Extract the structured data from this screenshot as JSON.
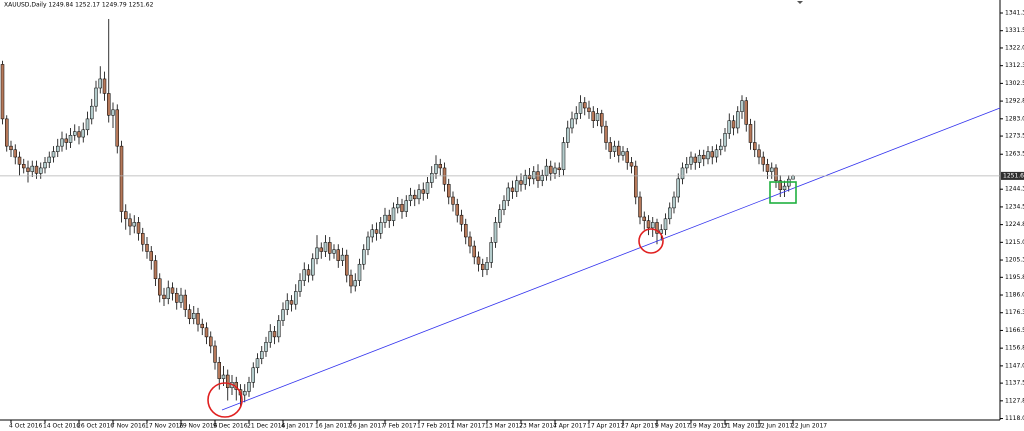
{
  "chart_data": {
    "type": "candlestick",
    "title": "XAUUSD,Daily  1249.84 1252.17 1249.79 1251.62",
    "categories": [
      null,
      null,
      "4 Oct 2016",
      null,
      null,
      null,
      null,
      null,
      null,
      null,
      "14 Oct 2016",
      null,
      null,
      null,
      null,
      null,
      null,
      null,
      "26 Oct 2016",
      null,
      null,
      null,
      null,
      null,
      null,
      null,
      "7 Nov 2016",
      null,
      null,
      null,
      null,
      null,
      null,
      null,
      "17 Nov 2016",
      null,
      null,
      null,
      null,
      null,
      null,
      null,
      "29 Nov 2016",
      null,
      null,
      null,
      null,
      null,
      null,
      null,
      "9 Dec 2016",
      null,
      null,
      null,
      null,
      null,
      null,
      null,
      "21 Dec 2016",
      null,
      null,
      null,
      null,
      null,
      null,
      null,
      "4 Jan 2017",
      null,
      null,
      null,
      null,
      null,
      null,
      null,
      "16 Jan 2017",
      null,
      null,
      null,
      null,
      null,
      null,
      null,
      "26 Jan 2017",
      null,
      null,
      null,
      null,
      null,
      null,
      null,
      "7 Feb 2017",
      null,
      null,
      null,
      null,
      null,
      null,
      null,
      "17 Feb 2017",
      null,
      null,
      null,
      null,
      null,
      null,
      null,
      "1 Mar 2017",
      null,
      null,
      null,
      null,
      null,
      null,
      null,
      "13 Mar 2017",
      null,
      null,
      null,
      null,
      null,
      null,
      null,
      "23 Mar 2017",
      null,
      null,
      null,
      null,
      null,
      null,
      null,
      "4 Apr 2017",
      null,
      null,
      null,
      null,
      null,
      null,
      null,
      "17 Apr 2017",
      null,
      null,
      null,
      null,
      null,
      null,
      null,
      "27 Apr 2017",
      null,
      null,
      null,
      null,
      null,
      null,
      null,
      "9 May 2017",
      null,
      null,
      null,
      null,
      null,
      null,
      null,
      "19 May 2017",
      null,
      null,
      null,
      null,
      null,
      null,
      null,
      "31 May 2017",
      null,
      null,
      null,
      null,
      null,
      null,
      null,
      "12 Jun 2017",
      null,
      null,
      null,
      null,
      null,
      null,
      null,
      "22 Jun 2017"
    ],
    "open": [
      1313,
      1283,
      1268,
      1266,
      1262,
      1258,
      1256,
      1254,
      1257,
      1253,
      1256,
      1259,
      1262,
      1265,
      1268,
      1272,
      1270,
      1274,
      1276,
      1273,
      1277,
      1283,
      1290,
      1300,
      1305,
      1297,
      1285,
      1288,
      1268,
      1232,
      1228,
      1224,
      1226,
      1220,
      1214,
      1210,
      1205,
      1195,
      1186,
      1184,
      1190,
      1187,
      1182,
      1186,
      1178,
      1173,
      1176,
      1170,
      1168,
      1163,
      1158,
      1149,
      1140,
      1142,
      1135,
      1138,
      1134,
      1131,
      1133,
      1138,
      1146,
      1151,
      1155,
      1160,
      1166,
      1163,
      1172,
      1178,
      1183,
      1181,
      1188,
      1194,
      1200,
      1197,
      1206,
      1212,
      1210,
      1215,
      1209,
      1211,
      1205,
      1208,
      1197,
      1191,
      1194,
      1203,
      1211,
      1218,
      1222,
      1220,
      1226,
      1230,
      1227,
      1234,
      1236,
      1232,
      1238,
      1241,
      1239,
      1244,
      1242,
      1248,
      1253,
      1258,
      1256,
      1247,
      1240,
      1236,
      1230,
      1225,
      1218,
      1213,
      1207,
      1203,
      1200,
      1204,
      1215,
      1226,
      1233,
      1238,
      1245,
      1243,
      1249,
      1247,
      1252,
      1250,
      1254,
      1249,
      1252,
      1257,
      1253,
      1256,
      1255,
      1270,
      1278,
      1283,
      1286,
      1292,
      1289,
      1287,
      1282,
      1286,
      1279,
      1270,
      1265,
      1268,
      1263,
      1265,
      1259,
      1257,
      1240,
      1229,
      1227,
      1223,
      1226,
      1220,
      1222,
      1228,
      1234,
      1240,
      1250,
      1256,
      1258,
      1262,
      1259,
      1263,
      1261,
      1265,
      1262,
      1266,
      1268,
      1275,
      1282,
      1278,
      1287,
      1293,
      1280,
      1270,
      1266,
      1262,
      1258,
      1254,
      1256,
      1249,
      1244,
      1246,
      1249.84
    ],
    "high": [
      1315,
      1285,
      1271,
      1269,
      1265,
      1261,
      1260,
      1260,
      1260,
      1259,
      1262,
      1265,
      1268,
      1272,
      1276,
      1275,
      1278,
      1280,
      1279,
      1281,
      1287,
      1294,
      1304,
      1312,
      1309,
      1338,
      1292,
      1291,
      1271,
      1236,
      1231,
      1230,
      1229,
      1223,
      1218,
      1213,
      1208,
      1198,
      1190,
      1194,
      1193,
      1190,
      1190,
      1189,
      1181,
      1180,
      1179,
      1173,
      1171,
      1166,
      1161,
      1152,
      1147,
      1145,
      1142,
      1141,
      1137,
      1137,
      1141,
      1149,
      1154,
      1158,
      1163,
      1170,
      1169,
      1175,
      1182,
      1187,
      1186,
      1192,
      1198,
      1204,
      1203,
      1209,
      1219,
      1215,
      1219,
      1218,
      1214,
      1214,
      1212,
      1211,
      1200,
      1198,
      1206,
      1214,
      1221,
      1225,
      1226,
      1229,
      1234,
      1233,
      1237,
      1240,
      1239,
      1241,
      1245,
      1244,
      1247,
      1248,
      1251,
      1257,
      1263,
      1261,
      1259,
      1250,
      1243,
      1239,
      1233,
      1228,
      1221,
      1216,
      1210,
      1206,
      1207,
      1218,
      1229,
      1236,
      1241,
      1248,
      1249,
      1252,
      1253,
      1255,
      1256,
      1257,
      1258,
      1255,
      1261,
      1260,
      1259,
      1259,
      1273,
      1282,
      1287,
      1290,
      1296,
      1295,
      1293,
      1290,
      1289,
      1288,
      1282,
      1273,
      1271,
      1271,
      1268,
      1267,
      1262,
      1260,
      1243,
      1232,
      1230,
      1229,
      1228,
      1225,
      1231,
      1237,
      1243,
      1253,
      1259,
      1262,
      1265,
      1264,
      1266,
      1266,
      1268,
      1268,
      1269,
      1272,
      1278,
      1286,
      1285,
      1290,
      1296,
      1295,
      1283,
      1282,
      1269,
      1265,
      1261,
      1259,
      1258,
      1252,
      1249,
      1252,
      1252.17
    ],
    "low": [
      1280,
      1265,
      1262,
      1258,
      1252,
      1253,
      1248,
      1251,
      1250,
      1250,
      1253,
      1256,
      1259,
      1262,
      1265,
      1266,
      1267,
      1271,
      1269,
      1270,
      1274,
      1280,
      1287,
      1297,
      1293,
      1281,
      1278,
      1264,
      1226,
      1222,
      1219,
      1220,
      1216,
      1210,
      1206,
      1200,
      1191,
      1182,
      1180,
      1181,
      1183,
      1178,
      1179,
      1174,
      1170,
      1170,
      1166,
      1164,
      1159,
      1154,
      1145,
      1134,
      1136,
      1128,
      1131,
      1128,
      1124,
      1127,
      1130,
      1135,
      1143,
      1148,
      1152,
      1157,
      1159,
      1160,
      1169,
      1175,
      1177,
      1178,
      1185,
      1191,
      1193,
      1194,
      1203,
      1206,
      1207,
      1205,
      1206,
      1201,
      1202,
      1193,
      1187,
      1188,
      1191,
      1200,
      1208,
      1215,
      1216,
      1217,
      1223,
      1223,
      1224,
      1231,
      1228,
      1229,
      1235,
      1235,
      1236,
      1238,
      1239,
      1245,
      1250,
      1252,
      1243,
      1236,
      1232,
      1226,
      1221,
      1214,
      1209,
      1203,
      1199,
      1196,
      1197,
      1201,
      1212,
      1223,
      1230,
      1235,
      1239,
      1240,
      1243,
      1244,
      1246,
      1247,
      1245,
      1246,
      1249,
      1249,
      1250,
      1251,
      1252,
      1267,
      1275,
      1280,
      1283,
      1285,
      1283,
      1278,
      1279,
      1275,
      1266,
      1261,
      1262,
      1259,
      1260,
      1255,
      1253,
      1236,
      1225,
      1222,
      1219,
      1218,
      1214,
      1216,
      1219,
      1225,
      1231,
      1237,
      1247,
      1253,
      1255,
      1255,
      1256,
      1257,
      1258,
      1258,
      1259,
      1263,
      1265,
      1272,
      1274,
      1275,
      1283,
      1276,
      1266,
      1262,
      1258,
      1254,
      1250,
      1250,
      1245,
      1240,
      1240,
      1243,
      1249.79
    ],
    "close": [
      1283,
      1268,
      1266,
      1262,
      1258,
      1256,
      1254,
      1257,
      1253,
      1256,
      1259,
      1262,
      1265,
      1268,
      1272,
      1270,
      1274,
      1276,
      1273,
      1277,
      1283,
      1290,
      1300,
      1305,
      1297,
      1285,
      1288,
      1268,
      1232,
      1228,
      1224,
      1226,
      1220,
      1214,
      1210,
      1205,
      1195,
      1186,
      1184,
      1190,
      1187,
      1182,
      1186,
      1178,
      1173,
      1176,
      1170,
      1168,
      1163,
      1158,
      1149,
      1140,
      1142,
      1135,
      1138,
      1134,
      1131,
      1133,
      1138,
      1146,
      1151,
      1155,
      1160,
      1166,
      1163,
      1172,
      1178,
      1183,
      1181,
      1188,
      1194,
      1200,
      1197,
      1206,
      1212,
      1210,
      1215,
      1209,
      1211,
      1205,
      1208,
      1197,
      1191,
      1194,
      1203,
      1211,
      1218,
      1222,
      1220,
      1226,
      1230,
      1227,
      1234,
      1236,
      1232,
      1238,
      1241,
      1239,
      1244,
      1242,
      1248,
      1253,
      1258,
      1256,
      1247,
      1240,
      1236,
      1230,
      1225,
      1218,
      1213,
      1207,
      1203,
      1200,
      1204,
      1215,
      1226,
      1233,
      1238,
      1245,
      1243,
      1249,
      1247,
      1252,
      1250,
      1254,
      1249,
      1252,
      1257,
      1253,
      1256,
      1255,
      1270,
      1278,
      1283,
      1286,
      1292,
      1289,
      1287,
      1282,
      1286,
      1279,
      1270,
      1265,
      1268,
      1263,
      1265,
      1259,
      1257,
      1240,
      1229,
      1227,
      1223,
      1226,
      1220,
      1222,
      1228,
      1234,
      1240,
      1250,
      1256,
      1258,
      1262,
      1259,
      1263,
      1261,
      1265,
      1262,
      1266,
      1268,
      1275,
      1282,
      1278,
      1287,
      1293,
      1280,
      1270,
      1266,
      1262,
      1258,
      1254,
      1256,
      1249,
      1244,
      1246,
      1249.84,
      1251.62
    ],
    "up_color": "#b4cccc",
    "down_color": "#b5785a",
    "ylim": [
      1117.8,
      1348.45
    ],
    "yticks": [
      {
        "value": 1341.3,
        "label": "1341.30"
      },
      {
        "value": 1331.55,
        "label": "1331.55"
      },
      {
        "value": 1322.05,
        "label": "1322.05"
      },
      {
        "value": 1312.3,
        "label": "1312.30"
      },
      {
        "value": 1302.55,
        "label": "1302.55"
      },
      {
        "value": 1292.8,
        "label": "1292.80"
      },
      {
        "value": 1283.05,
        "label": "1283.05"
      },
      {
        "value": 1273.55,
        "label": "1273.55"
      },
      {
        "value": 1263.55,
        "label": "1263.55"
      },
      {
        "value": 1244.3,
        "label": "1244.30"
      },
      {
        "value": 1234.55,
        "label": "1234.55"
      },
      {
        "value": 1224.8,
        "label": "1224.80"
      },
      {
        "value": 1215.05,
        "label": "1215.05"
      },
      {
        "value": 1205.3,
        "label": "1205.30"
      },
      {
        "value": 1195.8,
        "label": "1195.80"
      },
      {
        "value": 1186.05,
        "label": "1186.05"
      },
      {
        "value": 1176.3,
        "label": "1176.30"
      },
      {
        "value": 1166.55,
        "label": "1166.55"
      },
      {
        "value": 1156.8,
        "label": "1156.80"
      },
      {
        "value": 1147.05,
        "label": "1147.05"
      },
      {
        "value": 1137.55,
        "label": "1137.55"
      },
      {
        "value": 1127.8,
        "label": "1127.80"
      },
      {
        "value": 1118.05,
        "label": "1118.05"
      }
    ],
    "last_price": {
      "value": 1251.62,
      "label": "1251.62"
    },
    "grid": false
  }
}
